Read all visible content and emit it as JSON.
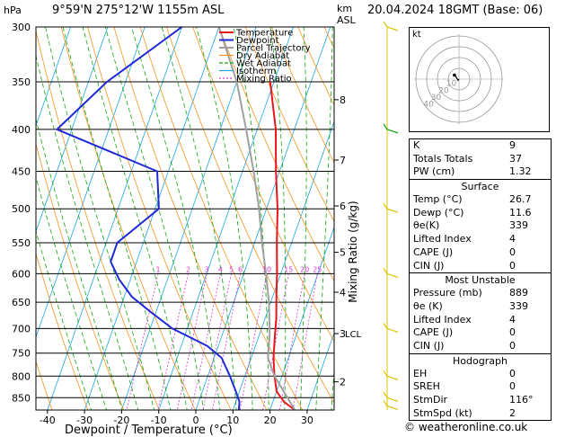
{
  "header": {
    "pressure_unit": "hPa",
    "location": "9°59'N  275°12'W  1155m  ASL",
    "height_unit_line1": "km",
    "height_unit_line2": "ASL",
    "datetime": "20.04.2024  18GMT  (Base: 06)"
  },
  "chart_data": {
    "type": "line",
    "title": "",
    "xlabel": "Dewpoint / Temperature (°C)",
    "ylabel": "hPa",
    "right_label": "Mixing Ratio (g/kg)",
    "xlim": [
      -45,
      37
    ],
    "ylim": [
      880,
      300
    ],
    "y_scale": "log",
    "x_ticks": [
      -40,
      -30,
      -20,
      -10,
      0,
      10,
      20,
      30
    ],
    "pressure_ticks": [
      300,
      350,
      400,
      450,
      500,
      550,
      600,
      650,
      700,
      750,
      800,
      850
    ],
    "km_ticks": [
      {
        "label": "8",
        "p": 368
      },
      {
        "label": "7",
        "p": 436
      },
      {
        "label": "6",
        "p": 496
      },
      {
        "label": "5",
        "p": 565
      },
      {
        "label": "4",
        "p": 632
      },
      {
        "label": "3",
        "p": 710
      },
      {
        "label": "2",
        "p": 813
      }
    ],
    "lcl": {
      "label": "LCL",
      "p": 710
    },
    "mixing_ratio_labels": [
      "1",
      "2",
      "3",
      "4",
      "5",
      "6",
      "10",
      "15",
      "20",
      "25"
    ],
    "mixing_ratio_values": [
      1,
      2,
      3,
      4,
      5,
      6,
      10,
      15,
      20,
      25
    ],
    "legend_position": "top-left",
    "legend": [
      {
        "name": "Temperature",
        "color": "#e8161c"
      },
      {
        "name": "Dewpoint",
        "color": "#1f2ad6"
      },
      {
        "name": "Parcel Trajectory",
        "color": "#a0a0a0"
      },
      {
        "name": "Dry Adiabat",
        "color": "#f7931e"
      },
      {
        "name": "Wet Adiabat",
        "color": "#11a811"
      },
      {
        "name": "Isotherm",
        "color": "#1aa6e0"
      },
      {
        "name": "Mixing Ratio",
        "color": "#d63ad6"
      }
    ],
    "series": [
      {
        "name": "Temperature",
        "color": "#e8161c",
        "points": [
          [
            26.7,
            880
          ],
          [
            23,
            860
          ],
          [
            20,
            835
          ],
          [
            18,
            800
          ],
          [
            16,
            760
          ],
          [
            14.5,
            720
          ],
          [
            13,
            680
          ],
          [
            11,
            640
          ],
          [
            9,
            600
          ],
          [
            6,
            550
          ],
          [
            3,
            500
          ],
          [
            -1,
            450
          ],
          [
            -5,
            400
          ],
          [
            -11,
            350
          ]
        ]
      },
      {
        "name": "Dewpoint",
        "color": "#1f2ad6",
        "points": [
          [
            11.6,
            880
          ],
          [
            11,
            860
          ],
          [
            9,
            835
          ],
          [
            6,
            800
          ],
          [
            2,
            760
          ],
          [
            -3,
            735
          ],
          [
            -14,
            700
          ],
          [
            -21,
            670
          ],
          [
            -28,
            640
          ],
          [
            -33,
            610
          ],
          [
            -37,
            580
          ],
          [
            -37,
            550
          ],
          [
            -29,
            500
          ],
          [
            -33,
            450
          ],
          [
            -64,
            400
          ],
          [
            -55,
            350
          ],
          [
            -40,
            300
          ]
        ]
      },
      {
        "name": "Parcel Trajectory",
        "color": "#a0a0a0",
        "points": [
          [
            26.7,
            880
          ],
          [
            18,
            800
          ],
          [
            14.5,
            760
          ],
          [
            12.7,
            710
          ],
          [
            9.5,
            650
          ],
          [
            6,
            600
          ],
          [
            2,
            550
          ],
          [
            -2,
            500
          ],
          [
            -7,
            450
          ],
          [
            -13,
            400
          ],
          [
            -20,
            350
          ],
          [
            -30,
            300
          ]
        ]
      }
    ]
  },
  "hodograph": {
    "unit": "kt",
    "ring_labels": [
      "10",
      "20",
      "30",
      "40"
    ],
    "trace": [
      [
        0,
        0
      ],
      [
        -0.5,
        -0.6
      ],
      [
        -1.5,
        1.2
      ],
      [
        -2.3,
        2.0
      ]
    ]
  },
  "wind_barbs": [
    {
      "p": 300,
      "color": "#d9c400"
    },
    {
      "p": 400,
      "color": "#11a811"
    },
    {
      "p": 500,
      "color": "#d9c400"
    },
    {
      "p": 600,
      "color": "#d9c400"
    },
    {
      "p": 700,
      "color": "#d9c400"
    },
    {
      "p": 800,
      "color": "#d9c400"
    },
    {
      "p": 850,
      "color": "#d9c400"
    },
    {
      "p": 870,
      "color": "#d9c400"
    }
  ],
  "indices": {
    "rows": [
      {
        "label": "K",
        "value": "9"
      },
      {
        "label": "Totals Totals",
        "value": "37"
      },
      {
        "label": "PW (cm)",
        "value": "1.32"
      }
    ]
  },
  "surface": {
    "title": "Surface",
    "rows": [
      {
        "label": "Temp (°C)",
        "value": "26.7"
      },
      {
        "label": "Dewp (°C)",
        "value": "11.6"
      },
      {
        "label": "θe(K)",
        "value": "339"
      },
      {
        "label": "Lifted Index",
        "value": "4"
      },
      {
        "label": "CAPE (J)",
        "value": "0"
      },
      {
        "label": "CIN (J)",
        "value": "0"
      }
    ]
  },
  "most_unstable": {
    "title": "Most Unstable",
    "rows": [
      {
        "label": "Pressure (mb)",
        "value": "889"
      },
      {
        "label": "θe (K)",
        "value": "339"
      },
      {
        "label": "Lifted Index",
        "value": "4"
      },
      {
        "label": "CAPE (J)",
        "value": "0"
      },
      {
        "label": "CIN (J)",
        "value": "0"
      }
    ]
  },
  "hodograph_table": {
    "title": "Hodograph",
    "rows": [
      {
        "label": "EH",
        "value": "0"
      },
      {
        "label": "SREH",
        "value": "0"
      },
      {
        "label": "StmDir",
        "value": "116°"
      },
      {
        "label": "StmSpd (kt)",
        "value": "2"
      }
    ]
  },
  "footer": {
    "credit": "© weatheronline.co.uk"
  }
}
